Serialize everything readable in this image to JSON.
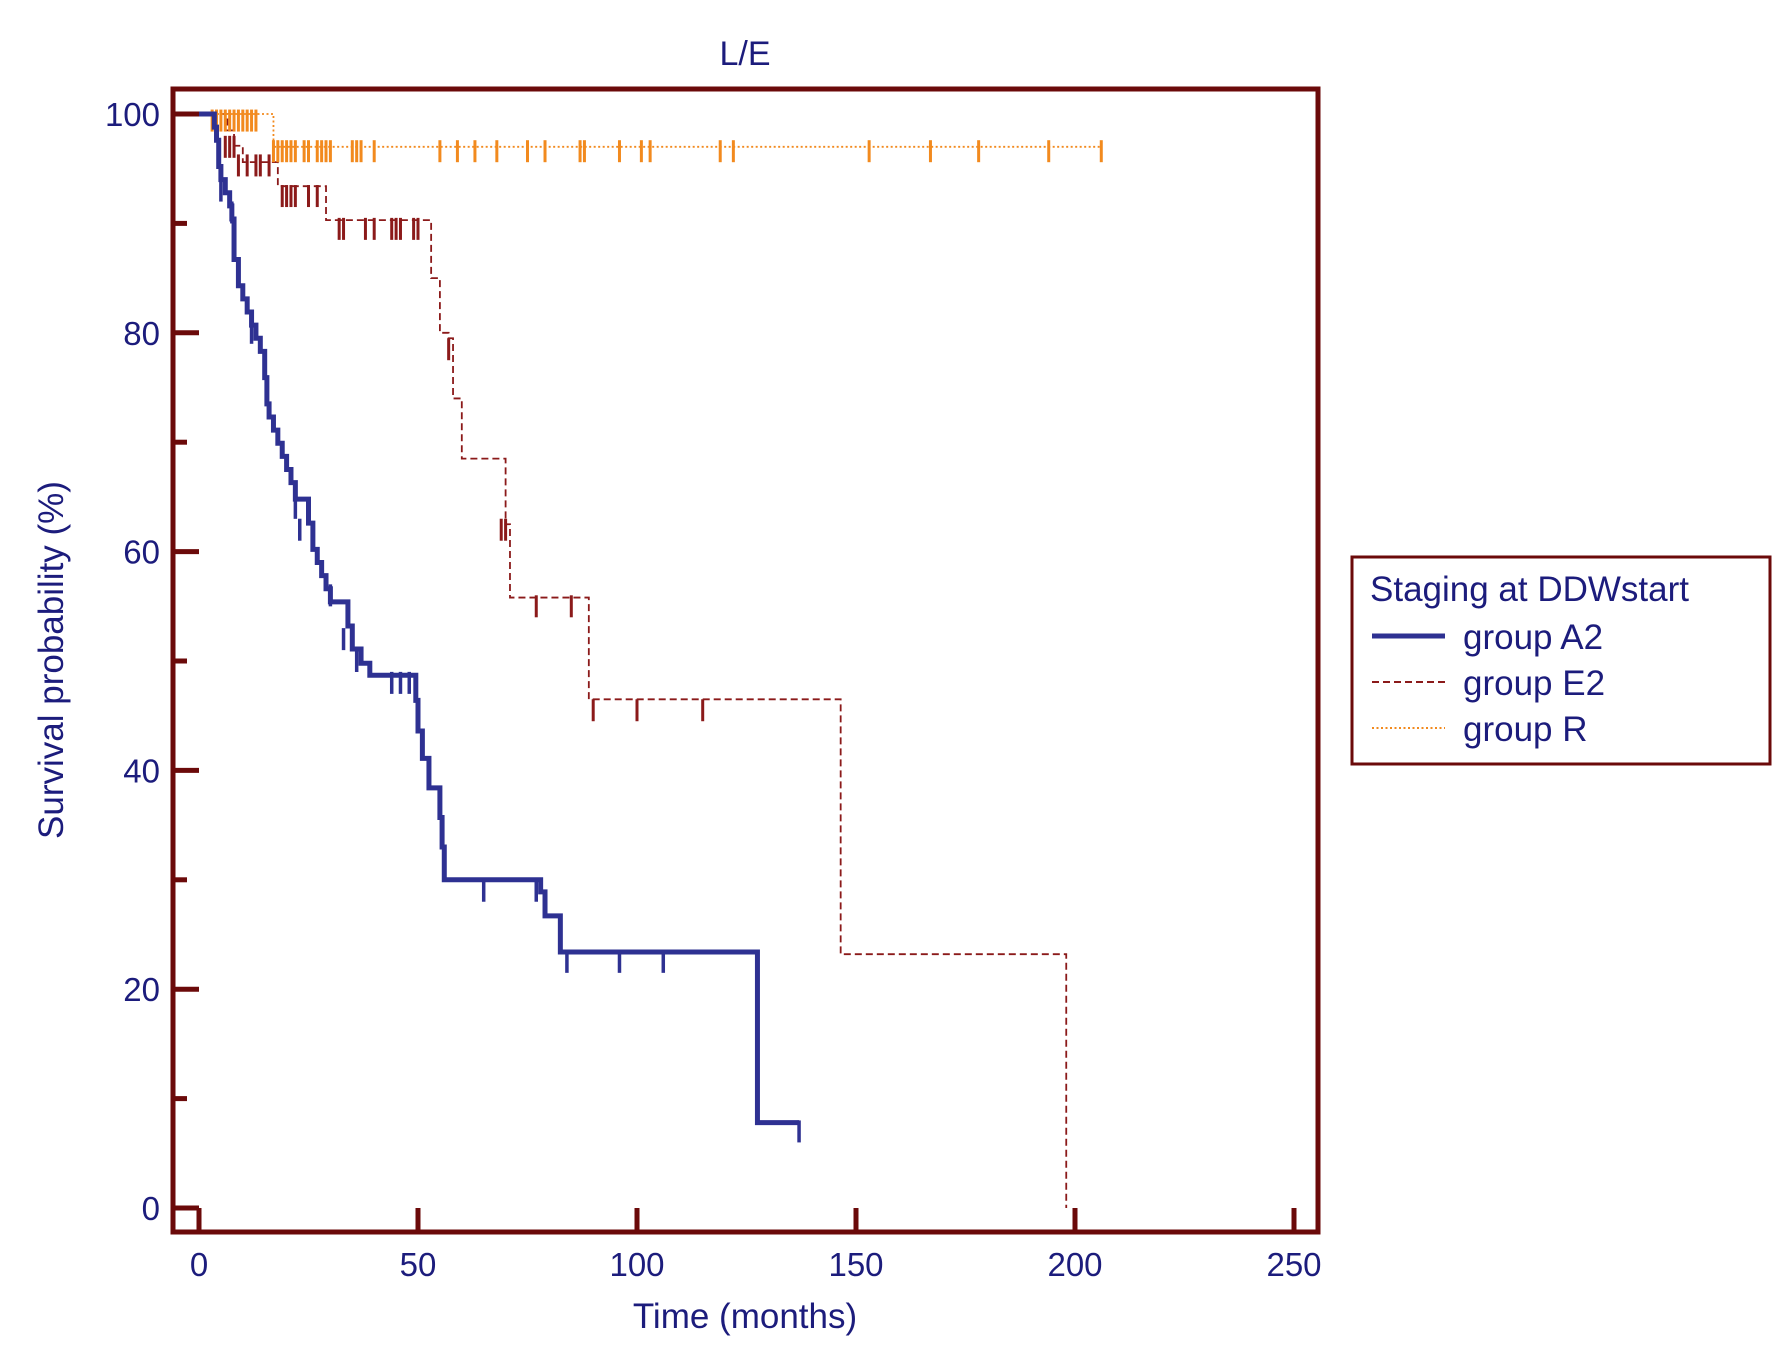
{
  "chart_data": {
    "type": "line",
    "subtype": "kaplan-meier survival",
    "title": "L/E",
    "xlabel": "Time (months)",
    "ylabel": "Survival probability (%)",
    "xlim": [
      0,
      250
    ],
    "ylim": [
      0,
      100
    ],
    "x_ticks": [
      "0",
      "50",
      "100",
      "150",
      "200",
      "250"
    ],
    "y_ticks": [
      "0",
      "20",
      "40",
      "60",
      "80",
      "100"
    ],
    "grid": false,
    "legend": {
      "title": "Staging at DDWstart",
      "position": "right"
    },
    "colors": {
      "frame": "#6b0a0a",
      "text": "#1c1c7c"
    },
    "series": [
      {
        "name": "group A2",
        "color": "#2e3192",
        "style": "solid",
        "steps": [
          [
            0,
            100
          ],
          [
            3,
            100
          ],
          [
            3.5,
            98.8
          ],
          [
            4,
            97.6
          ],
          [
            4.5,
            95.2
          ],
          [
            5,
            94
          ],
          [
            6,
            92.8
          ],
          [
            7,
            91.6
          ],
          [
            7.5,
            90.4
          ],
          [
            8,
            86.7
          ],
          [
            9,
            84.3
          ],
          [
            10,
            83.1
          ],
          [
            11,
            81.9
          ],
          [
            12,
            80.7
          ],
          [
            13,
            79.5
          ],
          [
            14,
            78.3
          ],
          [
            15,
            75.9
          ],
          [
            15.5,
            73.5
          ],
          [
            16,
            72.3
          ],
          [
            17,
            71.1
          ],
          [
            18,
            69.9
          ],
          [
            19,
            68.7
          ],
          [
            20,
            67.5
          ],
          [
            21,
            66.3
          ],
          [
            22,
            64.8
          ],
          [
            25,
            62.6
          ],
          [
            26,
            60.2
          ],
          [
            27,
            59
          ],
          [
            28,
            57.8
          ],
          [
            29,
            56.6
          ],
          [
            30,
            55.4
          ],
          [
            34,
            53.2
          ],
          [
            35,
            51.1
          ],
          [
            37,
            49.8
          ],
          [
            39,
            48.7
          ],
          [
            49,
            48.7
          ],
          [
            49.5,
            46.4
          ],
          [
            50,
            43.6
          ],
          [
            51,
            41.1
          ],
          [
            52.5,
            38.4
          ],
          [
            55,
            35.7
          ],
          [
            55.5,
            33
          ],
          [
            56,
            30
          ],
          [
            77,
            30
          ],
          [
            78,
            28.9
          ],
          [
            79,
            26.7
          ],
          [
            82,
            26.7
          ],
          [
            82.5,
            23.4
          ],
          [
            127,
            23.4
          ],
          [
            127.5,
            7.8
          ],
          [
            137,
            7.8
          ]
        ],
        "censored": [
          [
            5,
            93
          ],
          [
            7.5,
            91
          ],
          [
            12,
            80
          ],
          [
            22,
            64
          ],
          [
            23,
            62
          ],
          [
            30,
            56
          ],
          [
            33,
            52
          ],
          [
            36,
            50
          ],
          [
            44,
            48
          ],
          [
            46,
            48
          ],
          [
            48,
            48
          ],
          [
            65,
            29
          ],
          [
            77,
            29
          ],
          [
            84,
            22.5
          ],
          [
            96,
            22.5
          ],
          [
            106,
            22.5
          ],
          [
            137,
            7
          ]
        ]
      },
      {
        "name": "group E2",
        "color": "#8b1a1a",
        "style": "dashed",
        "steps": [
          [
            0,
            100
          ],
          [
            6,
            100
          ],
          [
            6.5,
            98.5
          ],
          [
            8,
            97.1
          ],
          [
            10,
            95.6
          ],
          [
            17,
            95.6
          ],
          [
            18,
            93.4
          ],
          [
            28,
            93.4
          ],
          [
            29,
            90.3
          ],
          [
            52,
            90.3
          ],
          [
            53,
            85
          ],
          [
            55,
            80
          ],
          [
            57,
            79.5
          ],
          [
            58,
            74
          ],
          [
            60,
            68.5
          ],
          [
            69,
            68.5
          ],
          [
            70,
            62.5
          ],
          [
            71,
            55.8
          ],
          [
            88,
            55.8
          ],
          [
            89,
            46.5
          ],
          [
            146,
            46.5
          ],
          [
            146.5,
            23.2
          ],
          [
            198,
            23.2
          ],
          [
            198,
            0
          ]
        ],
        "censored": [
          [
            6,
            97
          ],
          [
            7,
            97
          ],
          [
            8,
            97
          ],
          [
            9,
            95.3
          ],
          [
            11,
            95.3
          ],
          [
            13,
            95.3
          ],
          [
            14,
            95.3
          ],
          [
            16,
            95.3
          ],
          [
            19,
            92.5
          ],
          [
            20,
            92.5
          ],
          [
            21,
            92.5
          ],
          [
            22,
            92.5
          ],
          [
            25,
            92.5
          ],
          [
            27,
            92.5
          ],
          [
            32,
            89.5
          ],
          [
            33,
            89.5
          ],
          [
            38,
            89.5
          ],
          [
            40,
            89.5
          ],
          [
            44,
            89.5
          ],
          [
            45,
            89.5
          ],
          [
            46,
            89.5
          ],
          [
            49,
            89.5
          ],
          [
            50,
            89.5
          ],
          [
            57,
            78.5
          ],
          [
            69,
            62
          ],
          [
            70,
            62
          ],
          [
            77,
            55
          ],
          [
            85,
            55
          ],
          [
            90,
            45.5
          ],
          [
            100,
            45.5
          ],
          [
            115,
            45.5
          ]
        ]
      },
      {
        "name": "group R",
        "color": "#f28a1e",
        "style": "dotted",
        "steps": [
          [
            0,
            100
          ],
          [
            16,
            100
          ],
          [
            17,
            97
          ],
          [
            206,
            97
          ]
        ],
        "censored": [
          [
            3,
            99.4
          ],
          [
            4,
            99.4
          ],
          [
            5,
            99.4
          ],
          [
            6,
            99.4
          ],
          [
            7,
            99.4
          ],
          [
            8,
            99.4
          ],
          [
            9,
            99.4
          ],
          [
            10,
            99.4
          ],
          [
            11,
            99.4
          ],
          [
            12,
            99.4
          ],
          [
            13,
            99.4
          ],
          [
            17,
            96.6
          ],
          [
            18,
            96.6
          ],
          [
            19,
            96.6
          ],
          [
            20,
            96.6
          ],
          [
            21,
            96.6
          ],
          [
            22,
            96.6
          ],
          [
            24,
            96.6
          ],
          [
            25,
            96.6
          ],
          [
            27,
            96.6
          ],
          [
            28,
            96.6
          ],
          [
            29,
            96.6
          ],
          [
            30,
            96.6
          ],
          [
            35,
            96.6
          ],
          [
            36,
            96.6
          ],
          [
            37,
            96.6
          ],
          [
            40,
            96.6
          ],
          [
            55,
            96.6
          ],
          [
            59,
            96.6
          ],
          [
            63,
            96.6
          ],
          [
            68,
            96.6
          ],
          [
            75,
            96.6
          ],
          [
            79,
            96.6
          ],
          [
            87,
            96.6
          ],
          [
            88,
            96.6
          ],
          [
            96,
            96.6
          ],
          [
            101,
            96.6
          ],
          [
            103,
            96.6
          ],
          [
            119,
            96.6
          ],
          [
            122,
            96.6
          ],
          [
            153,
            96.6
          ],
          [
            167,
            96.6
          ],
          [
            178,
            96.6
          ],
          [
            194,
            96.6
          ],
          [
            206,
            96.6
          ]
        ]
      }
    ]
  }
}
